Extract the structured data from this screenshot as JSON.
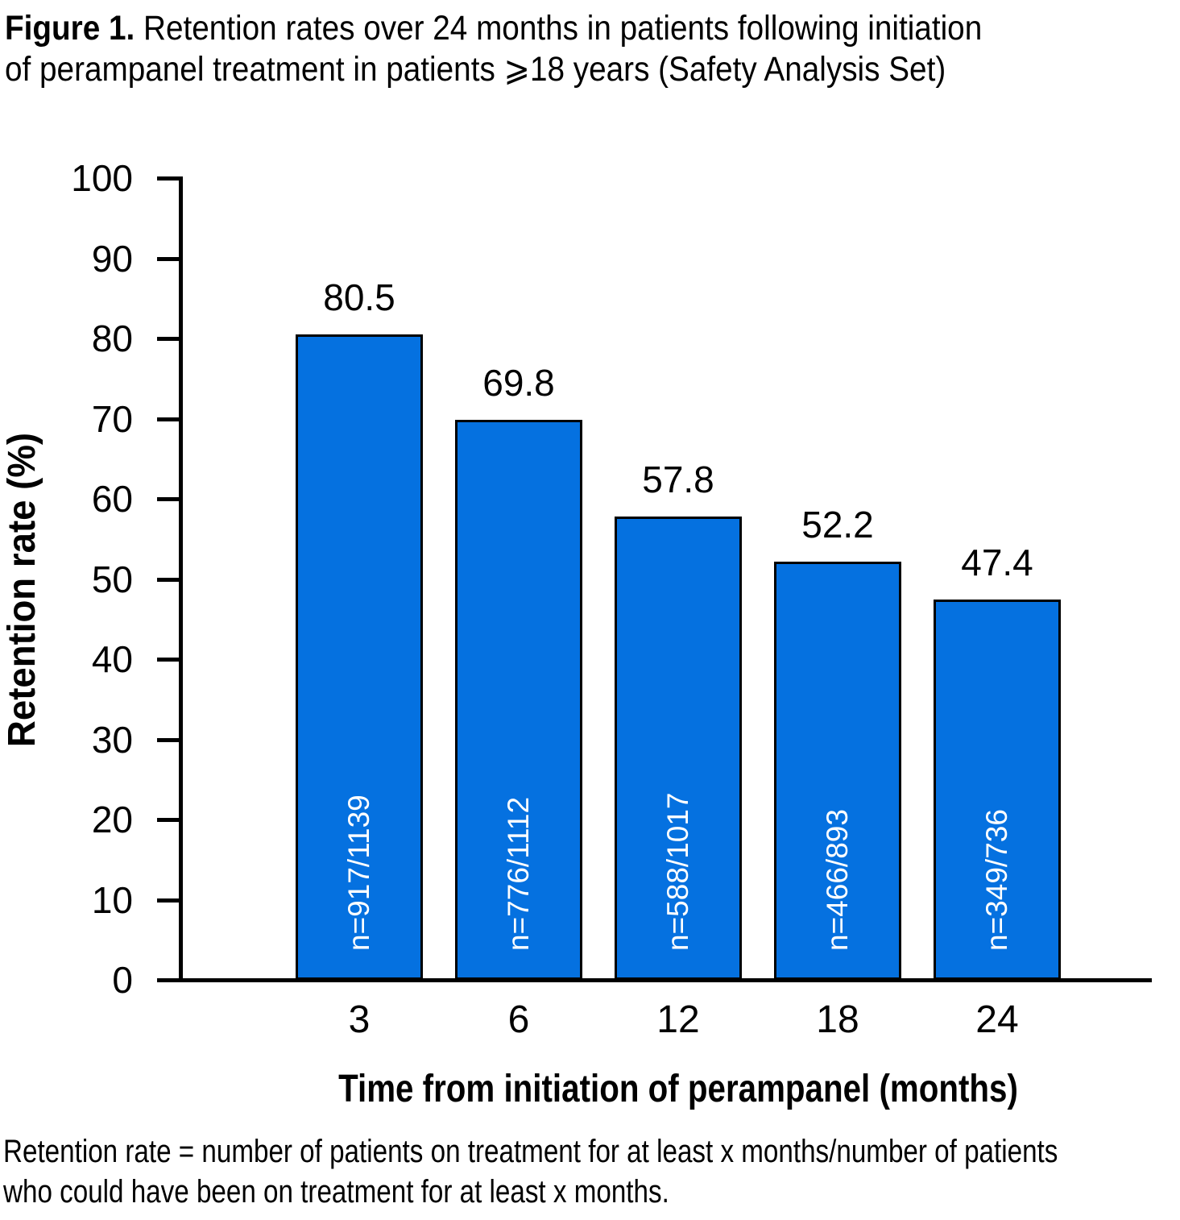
{
  "figure": {
    "title": {
      "prefix": "Figure 1.",
      "line1_rest": " Retention rates over 24 months in patients following initiation",
      "line2": "of perampanel treatment in patients ⩾18 years (Safety Analysis Set)"
    },
    "footnote_line1": "Retention rate = number of patients on treatment for at least x months/number of patients",
    "footnote_line2": "who could have been on treatment for at least x months."
  },
  "chart_data": {
    "type": "bar",
    "title": "Figure 1. Retention rates over 24 months in patients following initiation of perampanel treatment in patients ⩾18 years (Safety Analysis Set)",
    "categories": [
      "3",
      "6",
      "12",
      "18",
      "24"
    ],
    "values": [
      80.5,
      69.8,
      57.8,
      52.2,
      47.4
    ],
    "bar_value_labels": [
      "80.5",
      "69.8",
      "57.8",
      "52.2",
      "47.4"
    ],
    "bar_n_labels": [
      "n=917/1139",
      "n=776/1112",
      "n=588/1017",
      "n=466/893",
      "n=349/736"
    ],
    "xlabel": "Time from initiation of perampanel (months)",
    "ylabel": "Retention rate (%)",
    "ylim": [
      0,
      100
    ],
    "yticks": [
      0,
      10,
      20,
      30,
      40,
      50,
      60,
      70,
      80,
      90,
      100
    ],
    "grid": false,
    "legend": "none",
    "bar_color": "#0571E0",
    "bar_border_color": "#000000",
    "n_label_color": "#FFFFFF",
    "axis_color": "#000000"
  }
}
